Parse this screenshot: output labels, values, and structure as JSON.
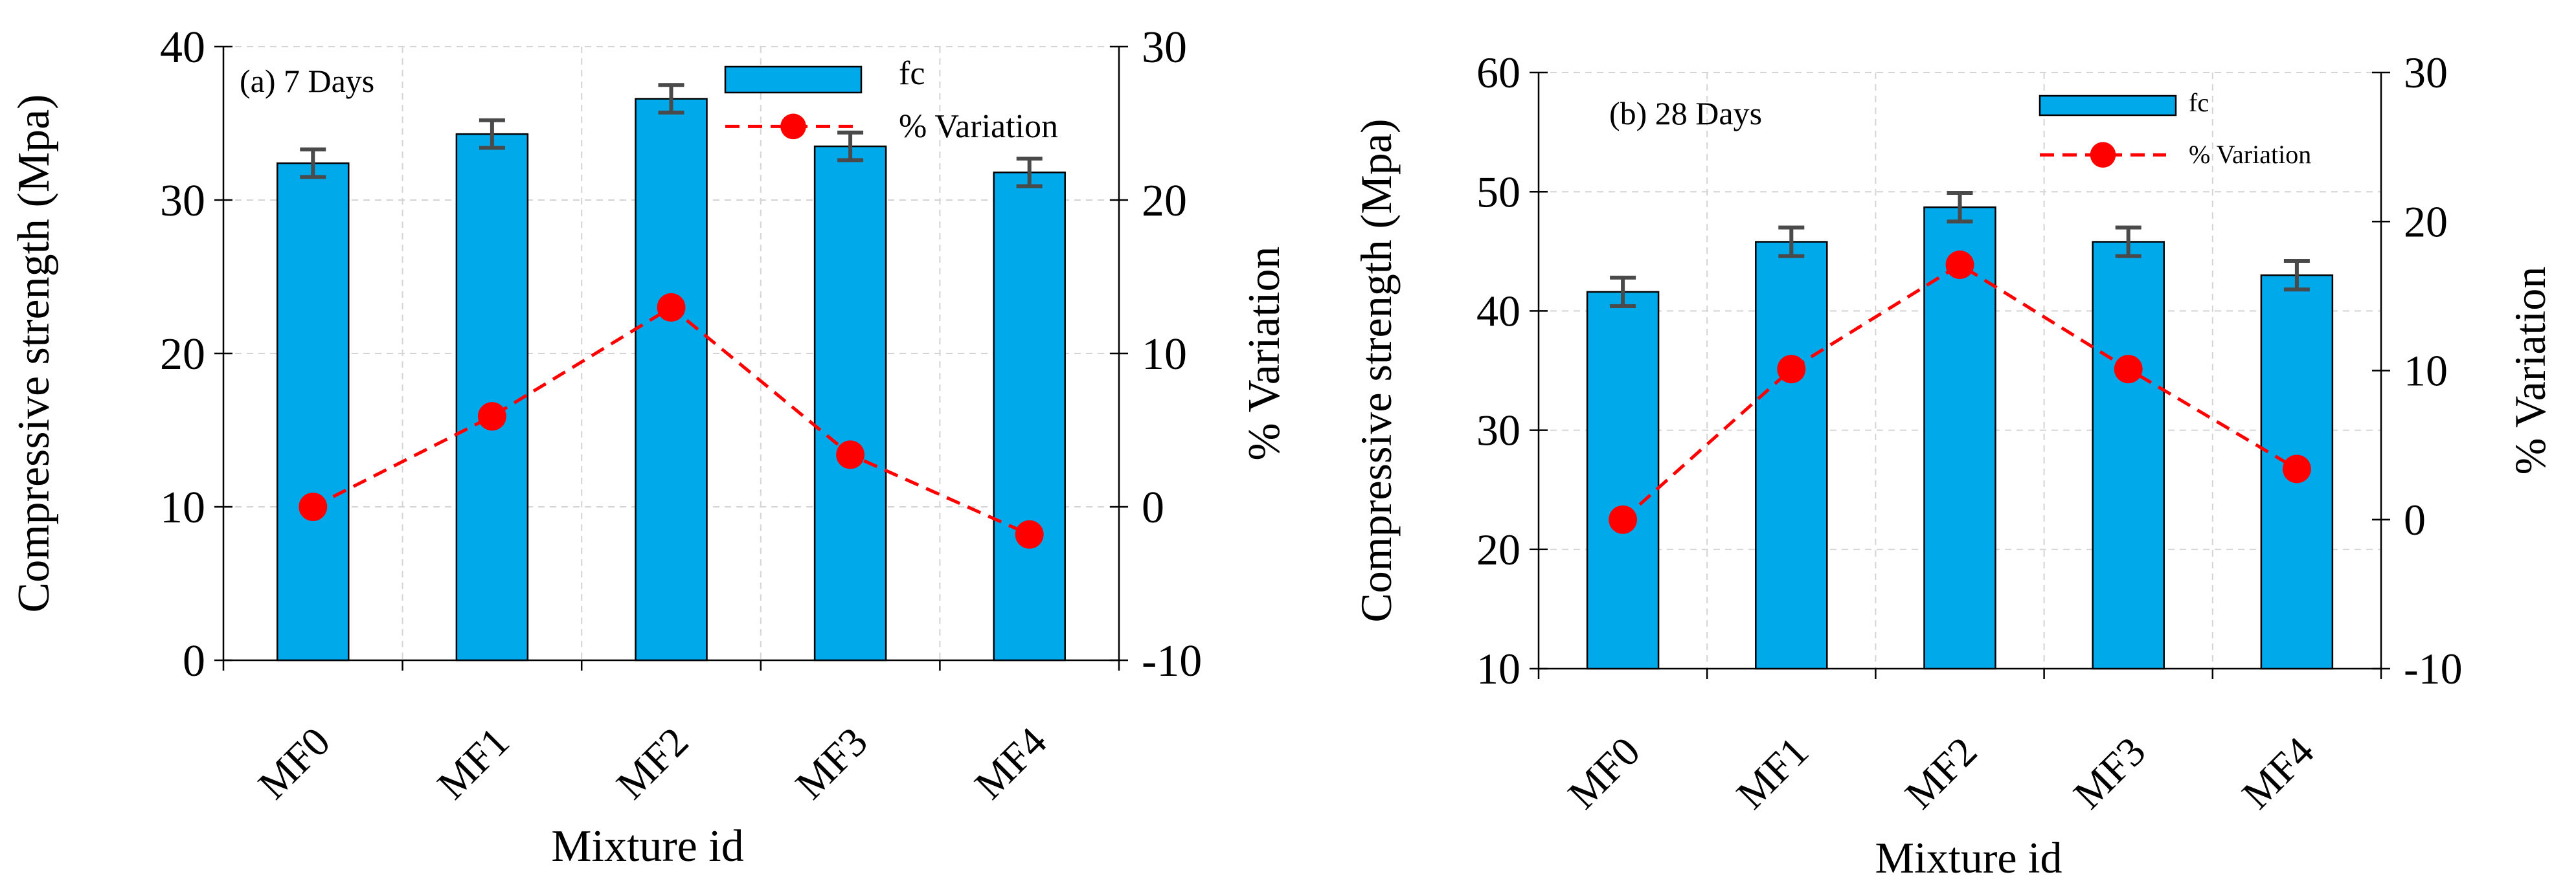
{
  "colors": {
    "bar": "#00a9ea",
    "line": "#ff0000",
    "marker": "#ff0000"
  },
  "chart_data": [
    {
      "type": "bar",
      "title": "(a) 7 Days",
      "xlabel": "Mixture id",
      "ylabel": "Compressive strength (Mpa)",
      "y2label": "% Variation",
      "categories": [
        "MF0",
        "MF1",
        "MF2",
        "MF3",
        "MF4"
      ],
      "ylim": [
        0,
        40
      ],
      "yticks": [
        0,
        10,
        20,
        30,
        40
      ],
      "y2lim": [
        -10,
        30
      ],
      "y2ticks": [
        -10,
        0,
        10,
        20,
        30
      ],
      "grid": true,
      "legend_position": "top-right",
      "series": [
        {
          "name": "fc",
          "type": "bar",
          "axis": "left",
          "values": [
            32.4,
            34.3,
            36.6,
            33.5,
            31.8
          ],
          "errors": [
            0.9,
            0.9,
            0.9,
            0.9,
            0.9
          ]
        },
        {
          "name": "% Variation",
          "type": "line",
          "axis": "right",
          "values": [
            0,
            5.9,
            13.0,
            3.4,
            -1.8
          ]
        }
      ]
    },
    {
      "type": "bar",
      "title": "(b) 28 Days",
      "xlabel": "Mixture id",
      "ylabel": "Compressive strength (Mpa)",
      "y2label": "% Variation",
      "categories": [
        "MF0",
        "MF1",
        "MF2",
        "MF3",
        "MF4"
      ],
      "ylim": [
        10,
        60
      ],
      "yticks": [
        10,
        20,
        30,
        40,
        50,
        60
      ],
      "y2lim": [
        -10,
        30
      ],
      "y2ticks": [
        -10,
        0,
        10,
        20,
        30
      ],
      "grid": true,
      "legend_position": "top-right",
      "series": [
        {
          "name": "fc",
          "type": "bar",
          "axis": "left",
          "values": [
            41.6,
            45.8,
            48.7,
            45.8,
            43.0
          ],
          "errors": [
            1.2,
            1.2,
            1.2,
            1.2,
            1.2
          ]
        },
        {
          "name": "% Variation",
          "type": "line",
          "axis": "right",
          "values": [
            0,
            10.1,
            17.1,
            10.1,
            3.4
          ]
        }
      ]
    }
  ]
}
